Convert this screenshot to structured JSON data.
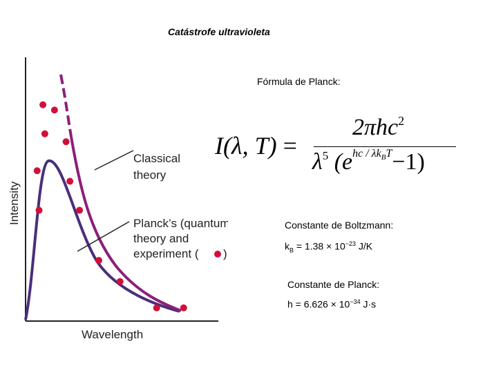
{
  "title": "Catástrofe ultravioleta",
  "formula": {
    "heading": "Fórmula de Planck:",
    "lhs_I": "I",
    "lhs_args": "(λ, T)",
    "lhs_eq": " =",
    "num_main": "2πhc",
    "num_exp": "2",
    "den_lambda": "λ",
    "den_power": "5",
    "den_open": " (e",
    "den_exp_main": "hc / λk",
    "den_exp_sub": "B",
    "den_exp_T": "T",
    "den_close": "−1)"
  },
  "boltzmann": {
    "heading": "Constante de Boltzmann:",
    "symbol": "k",
    "symbol_sub": "B",
    "value": " = 1.38 × 10",
    "exponent": "−23",
    "unit": " J/K"
  },
  "planck": {
    "heading": "Constante de Planck:",
    "value": "h = 6.626 × 10",
    "exponent": "−34",
    "unit": " J·s"
  },
  "plot": {
    "ylabel": "Intensity",
    "xlabel": "Wavelength",
    "classical_label_1": "Classical",
    "classical_label_2": "theory",
    "planck_label_1": "Planck’s (quantum)",
    "planck_label_2": "theory and",
    "planck_label_3": "experiment (",
    "planck_label_4": ")",
    "colors": {
      "classical": "#8b1f7a",
      "planck_curve": "#4a2e7a",
      "points": "#d0103a",
      "axes": "#222222"
    },
    "points": [
      [
        0.09,
        0.82
      ],
      [
        0.1,
        0.71
      ],
      [
        0.06,
        0.57
      ],
      [
        0.07,
        0.42
      ],
      [
        0.15,
        0.8
      ],
      [
        0.21,
        0.68
      ],
      [
        0.23,
        0.53
      ],
      [
        0.28,
        0.42
      ],
      [
        0.38,
        0.23
      ],
      [
        0.49,
        0.15
      ],
      [
        0.68,
        0.05
      ],
      [
        0.82,
        0.05
      ]
    ]
  }
}
